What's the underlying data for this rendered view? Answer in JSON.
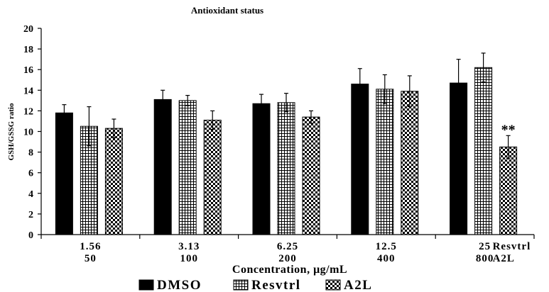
{
  "chart_data": {
    "type": "bar",
    "title": "Antioxidant status",
    "ylabel": "GSH/GSSG ratio",
    "xlabel": "Concentration, μg/mL",
    "ylim": [
      0,
      20
    ],
    "yticks": [
      0,
      2,
      4,
      6,
      8,
      10,
      12,
      14,
      16,
      18,
      20
    ],
    "categories": [
      {
        "line1": "1.56",
        "line2": "50"
      },
      {
        "line1": "3.13",
        "line2": "100"
      },
      {
        "line1": "6.25",
        "line2": "200"
      },
      {
        "line1": "12.5",
        "line2": "400"
      },
      {
        "line1": "25",
        "line2": "800"
      }
    ],
    "row_labels": {
      "line1": "Resvtrl",
      "line2": "A2L"
    },
    "series": [
      {
        "name": "DMSO",
        "values": [
          11.8,
          13.1,
          12.7,
          14.6,
          14.7
        ],
        "errors": [
          0.8,
          0.9,
          0.9,
          1.5,
          2.3
        ]
      },
      {
        "name": "Resvtrl",
        "values": [
          10.5,
          13.0,
          12.8,
          14.1,
          16.2
        ],
        "errors": [
          1.9,
          0.5,
          0.9,
          1.4,
          1.4
        ]
      },
      {
        "name": "A2L",
        "values": [
          10.3,
          11.1,
          11.4,
          13.9,
          8.5
        ],
        "errors": [
          0.9,
          0.9,
          0.6,
          1.5,
          1.1
        ]
      }
    ],
    "annotations": [
      {
        "text": "**",
        "series": "A2L",
        "category_index": 4
      }
    ],
    "grid": false,
    "legend_position": "bottom"
  }
}
